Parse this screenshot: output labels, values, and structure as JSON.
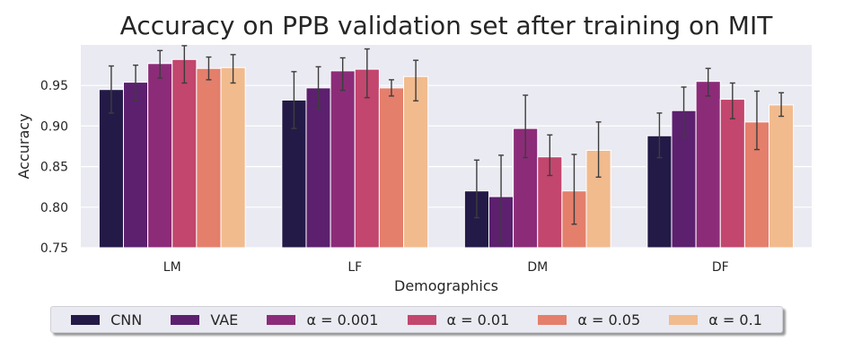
{
  "chart_data": {
    "type": "bar",
    "title": "Accuracy on PPB validation set after training on MIT",
    "xlabel": "Demographics",
    "ylabel": "Accuracy",
    "categories": [
      "LM",
      "LF",
      "DM",
      "DF"
    ],
    "ylim": [
      0.75,
      1.0
    ],
    "yticks": [
      "0.75",
      "0.80",
      "0.85",
      "0.90",
      "0.95"
    ],
    "grid": true,
    "legend_position": "bottom",
    "series": [
      {
        "name": "CNN",
        "color": "#241a47",
        "values": [
          0.945,
          0.932,
          0.82,
          0.888
        ],
        "err_low": [
          0.916,
          0.897,
          0.787,
          0.861
        ],
        "err_high": [
          0.974,
          0.967,
          0.858,
          0.916
        ]
      },
      {
        "name": "VAE",
        "color": "#5c206f",
        "values": [
          0.954,
          0.947,
          0.813,
          0.919
        ],
        "err_low": [
          0.931,
          0.921,
          0.758,
          0.886
        ],
        "err_high": [
          0.975,
          0.973,
          0.864,
          0.948
        ]
      },
      {
        "name": "α = 0.001",
        "color": "#8c2c79",
        "values": [
          0.977,
          0.968,
          0.897,
          0.955
        ],
        "err_low": [
          0.959,
          0.944,
          0.861,
          0.937
        ],
        "err_high": [
          0.993,
          0.984,
          0.938,
          0.971
        ]
      },
      {
        "name": "α = 0.01",
        "color": "#c2466d",
        "values": [
          0.982,
          0.97,
          0.862,
          0.933
        ],
        "err_low": [
          0.953,
          0.935,
          0.839,
          0.909
        ],
        "err_high": [
          0.999,
          0.995,
          0.889,
          0.953
        ]
      },
      {
        "name": "α = 0.05",
        "color": "#e47f6c",
        "values": [
          0.971,
          0.947,
          0.82,
          0.905
        ],
        "err_low": [
          0.957,
          0.937,
          0.779,
          0.871
        ],
        "err_high": [
          0.985,
          0.957,
          0.865,
          0.943
        ]
      },
      {
        "name": "α = 0.1",
        "color": "#f1bb8e",
        "values": [
          0.972,
          0.961,
          0.87,
          0.926
        ],
        "err_low": [
          0.953,
          0.931,
          0.837,
          0.912
        ],
        "err_high": [
          0.988,
          0.981,
          0.905,
          0.941
        ]
      }
    ]
  }
}
